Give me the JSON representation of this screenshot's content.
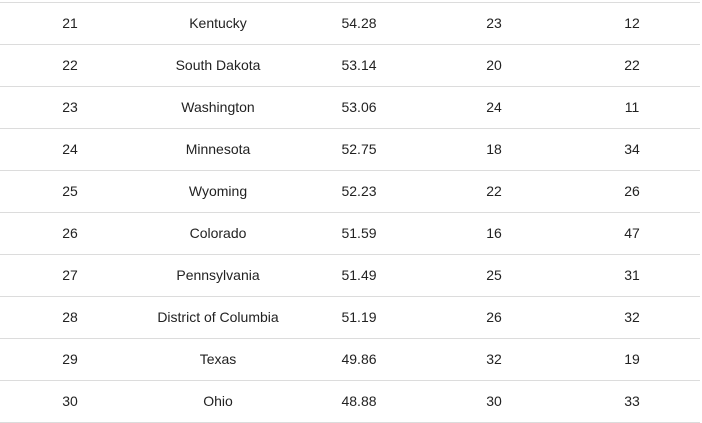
{
  "table": {
    "rows": [
      [
        "21",
        "Kentucky",
        "54.28",
        "23",
        "12"
      ],
      [
        "22",
        "South Dakota",
        "53.14",
        "20",
        "22"
      ],
      [
        "23",
        "Washington",
        "53.06",
        "24",
        "11"
      ],
      [
        "24",
        "Minnesota",
        "52.75",
        "18",
        "34"
      ],
      [
        "25",
        "Wyoming",
        "52.23",
        "22",
        "26"
      ],
      [
        "26",
        "Colorado",
        "51.59",
        "16",
        "47"
      ],
      [
        "27",
        "Pennsylvania",
        "51.49",
        "25",
        "31"
      ],
      [
        "28",
        "District of Columbia",
        "51.19",
        "26",
        "32"
      ],
      [
        "29",
        "Texas",
        "49.86",
        "32",
        "19"
      ],
      [
        "30",
        "Ohio",
        "48.88",
        "30",
        "33"
      ]
    ]
  }
}
